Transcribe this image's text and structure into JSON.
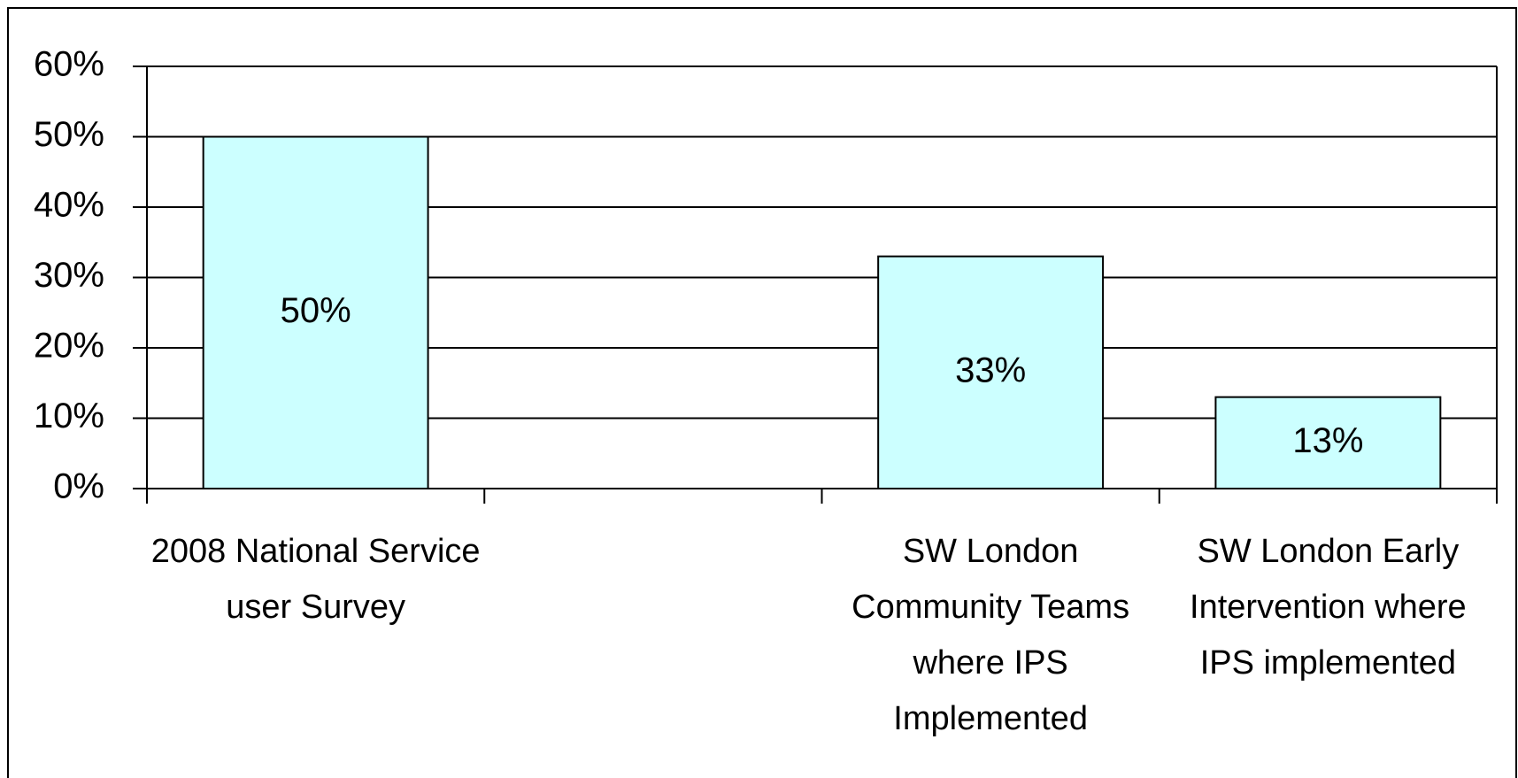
{
  "chart_data": {
    "type": "bar",
    "categories": [
      "2008 National Service user Survey",
      null,
      "SW London Community Teams where IPS Implemented",
      "SW London Early Intervention where IPS implemented"
    ],
    "values": [
      50,
      null,
      33,
      13
    ],
    "value_labels": [
      "50%",
      null,
      "33%",
      "13%"
    ],
    "color": "#ccffff",
    "ylim": [
      0,
      60
    ],
    "yticks": [
      {
        "value": 0,
        "label": "0%"
      },
      {
        "value": 10,
        "label": "10%"
      },
      {
        "value": 20,
        "label": "20%"
      },
      {
        "value": 30,
        "label": "30%"
      },
      {
        "value": 40,
        "label": "40%"
      },
      {
        "value": 50,
        "label": "50%"
      },
      {
        "value": 60,
        "label": "60%"
      }
    ],
    "grid": true
  }
}
